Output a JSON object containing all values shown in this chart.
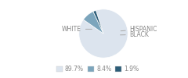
{
  "slices": [
    89.7,
    8.4,
    1.9
  ],
  "labels": [
    "WHITE",
    "HISPANIC",
    "BLACK"
  ],
  "colors": [
    "#dce4ee",
    "#7ca5bc",
    "#2d5d78"
  ],
  "legend_labels": [
    "89.7%",
    "8.4%",
    "1.9%"
  ],
  "startangle": 108,
  "label_color": "#888888",
  "bg_color": "#ffffff"
}
